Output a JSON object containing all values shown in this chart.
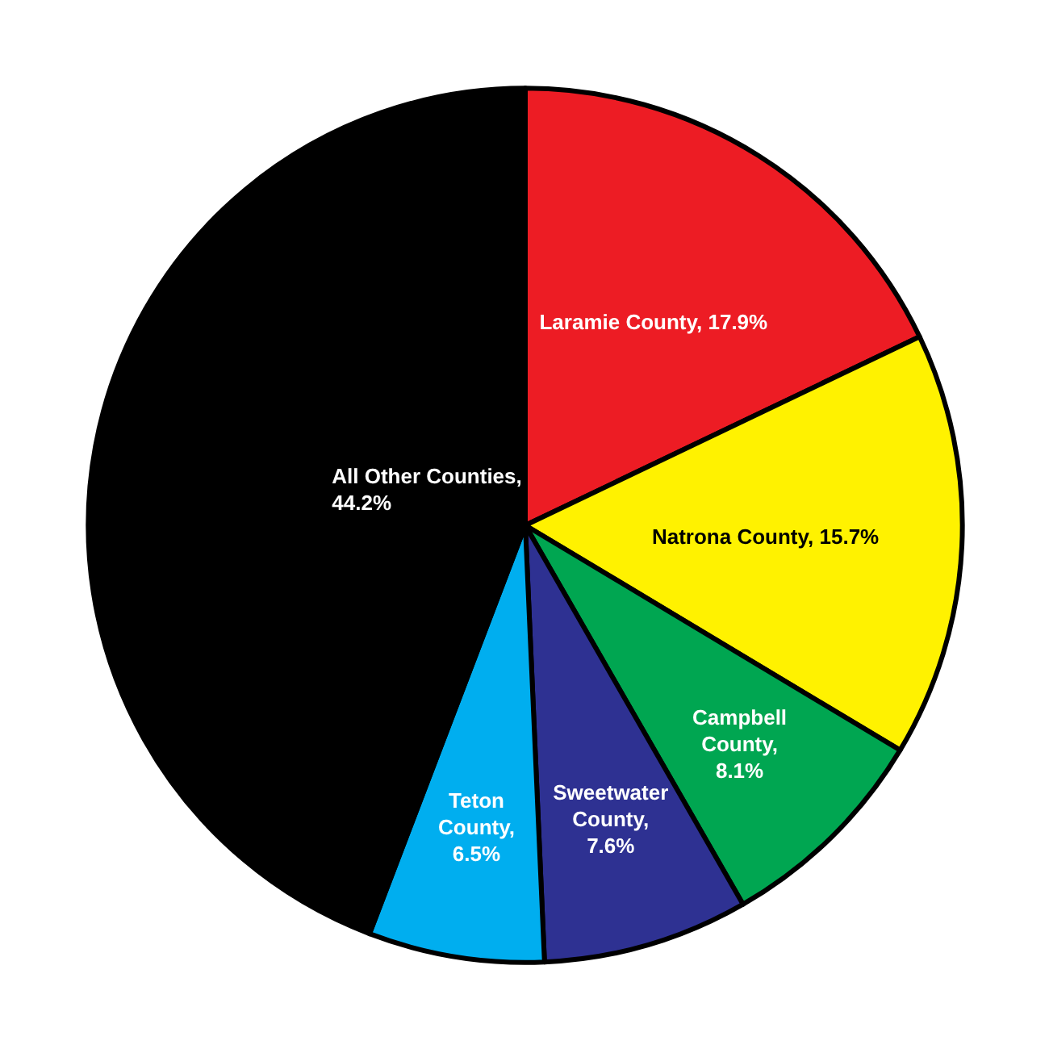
{
  "chart_data": {
    "type": "pie",
    "categories": [
      "Laramie County, 17.9%",
      "Natrona County, 15.7%",
      "Campbell County, 8.1%",
      "Sweetwater County, 7.6%",
      "Teton County, 6.5%",
      "All Other Counties, 44.2%"
    ],
    "values": [
      17.9,
      15.7,
      8.1,
      7.6,
      6.5,
      44.2
    ],
    "colors": [
      "#ed1c24",
      "#fff200",
      "#00a651",
      "#2e3192",
      "#00aeef",
      "#000000"
    ]
  }
}
